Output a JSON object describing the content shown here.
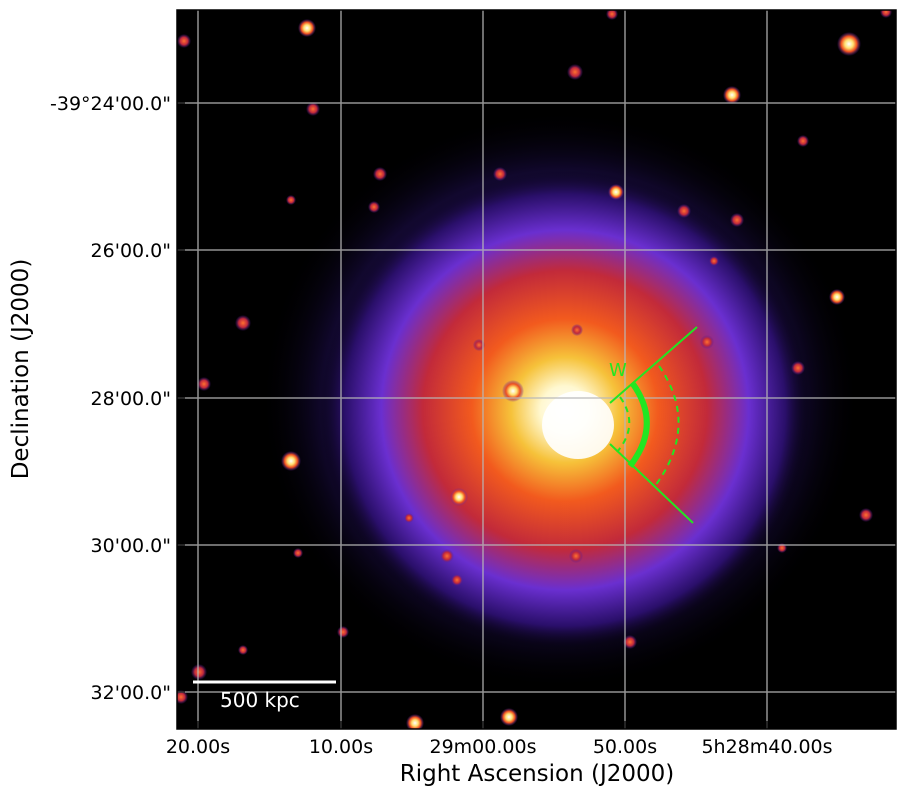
{
  "image": {
    "description_color_map": "gnuplot-like: black to purple to red to yellow to white",
    "background": "#000000",
    "grid_color": "#b8b8b8"
  },
  "axes": {
    "xlabel": "Right Ascension (J2000)",
    "ylabel": "Declination (J2000)",
    "x_ticks": [
      "20.00s",
      "10.00s",
      "29m00.00s",
      "50.00s",
      "5h28m40.00s"
    ],
    "y_ticks": [
      "-39°24'00.0\"",
      "26'00.0\"",
      "28'00.0\"",
      "30'00.0\"",
      "32'00.0\""
    ]
  },
  "annotations": {
    "scale_bar": "500 kpc",
    "region": "W",
    "region_color": "#22e622"
  }
}
